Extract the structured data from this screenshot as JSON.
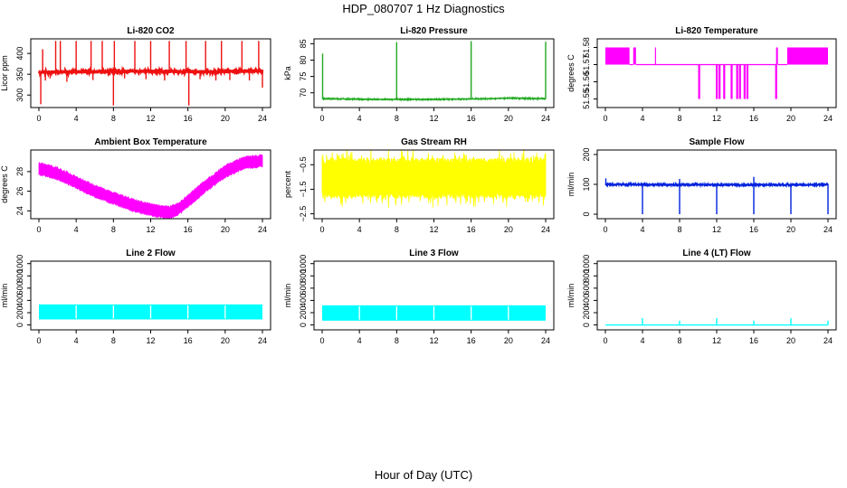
{
  "figure": {
    "title": "HDP_080707  1 Hz Diagnostics",
    "xlabel": "Hour of Day (UTC)"
  },
  "colors": {
    "red": "#ee1111",
    "green": "#22aa22",
    "magenta": "#ff00ff",
    "yellow": "#ffff00",
    "blue": "#0022dd",
    "cyan": "#00ffff"
  },
  "chart_data": [
    {
      "type": "line",
      "title": "Li-820 CO2",
      "ylabel": "Licor ppm",
      "color": "red",
      "xlim": [
        0,
        24
      ],
      "ylim": [
        270,
        435
      ],
      "xticks": [
        0,
        4,
        8,
        12,
        16,
        20,
        24
      ],
      "yticks": [
        300,
        350,
        400
      ],
      "baseline": [
        [
          0,
          355
        ],
        [
          6,
          356
        ],
        [
          12,
          357
        ],
        [
          18,
          356
        ],
        [
          24,
          358
        ]
      ],
      "noise": 4,
      "thickness": 2.5,
      "spikes_up": [
        [
          0.4,
          410
        ],
        [
          1.8,
          430
        ],
        [
          2.3,
          430
        ],
        [
          4.0,
          430
        ],
        [
          5.6,
          430
        ],
        [
          6.8,
          430
        ],
        [
          8.1,
          430
        ],
        [
          10.3,
          430
        ],
        [
          12.0,
          430
        ],
        [
          14.0,
          430
        ],
        [
          15.8,
          430
        ],
        [
          17.9,
          430
        ],
        [
          19.6,
          430
        ],
        [
          21.8,
          430
        ],
        [
          23.6,
          430
        ]
      ],
      "spikes_down": [
        [
          0.2,
          278
        ],
        [
          0.7,
          335
        ],
        [
          1.2,
          340
        ],
        [
          3.0,
          332
        ],
        [
          5.8,
          336
        ],
        [
          8.0,
          275
        ],
        [
          9.2,
          340
        ],
        [
          11.5,
          338
        ],
        [
          13.5,
          335
        ],
        [
          16.1,
          275
        ],
        [
          17.3,
          338
        ],
        [
          19.0,
          335
        ],
        [
          20.5,
          336
        ],
        [
          22.6,
          335
        ],
        [
          24.0,
          318
        ]
      ],
      "seed": 11
    },
    {
      "type": "line",
      "title": "Li-820 Pressure",
      "ylabel": "kPa",
      "color": "green",
      "xlim": [
        0,
        24
      ],
      "ylim": [
        65.5,
        86.5
      ],
      "xticks": [
        0,
        4,
        8,
        12,
        16,
        20,
        24
      ],
      "yticks": [
        70,
        75,
        80,
        85
      ],
      "baseline": [
        [
          0,
          68.2
        ],
        [
          6,
          68.0
        ],
        [
          12,
          68.0
        ],
        [
          18,
          68.2
        ],
        [
          20,
          68.4
        ],
        [
          24,
          68.2
        ]
      ],
      "noise": 0.12,
      "thickness": 1.2,
      "spikes_up": [
        [
          0.05,
          82
        ],
        [
          8.0,
          85.5
        ],
        [
          16.0,
          85.8
        ],
        [
          24.0,
          85.6
        ]
      ],
      "spikes_down": [],
      "seed": 23
    },
    {
      "type": "line",
      "title": "Li-820 Temperature",
      "ylabel": "degrees C",
      "color": "magenta",
      "xlim": [
        0,
        24
      ],
      "ylim": [
        51.545,
        51.585
      ],
      "xticks": [
        0,
        4,
        8,
        12,
        16,
        20,
        24
      ],
      "yticks": [
        51.55,
        51.56,
        51.57,
        51.58
      ],
      "levels": [
        51.55,
        51.57,
        51.58
      ],
      "segments": [
        {
          "from": 0.0,
          "to": 2.6,
          "mode": "fill_hi"
        },
        {
          "from": 2.6,
          "to": 3.0,
          "mode": "mid"
        },
        {
          "from": 3.0,
          "to": 3.3,
          "mode": "fill_hi"
        },
        {
          "from": 3.3,
          "to": 18.4,
          "mode": "mid"
        },
        {
          "from": 18.4,
          "to": 18.6,
          "mode": "fill_hi"
        },
        {
          "from": 18.6,
          "to": 19.6,
          "mode": "mid"
        },
        {
          "from": 19.6,
          "to": 24.0,
          "mode": "fill_hi"
        }
      ],
      "spikes_up": [
        5.4,
        19.8
      ],
      "spikes_down": [
        10.1,
        12.0,
        12.3,
        12.8,
        13.6,
        14.2,
        14.5,
        15.0,
        15.3,
        18.4
      ],
      "seed": 37
    },
    {
      "type": "band",
      "title": "Ambient Box Temperature",
      "ylabel": "degrees C",
      "color": "magenta",
      "xlim": [
        0,
        24
      ],
      "ylim": [
        23.2,
        30.2
      ],
      "xticks": [
        0,
        4,
        8,
        12,
        16,
        20,
        24
      ],
      "yticks": [
        24,
        26,
        28
      ],
      "center": [
        [
          0,
          28.3
        ],
        [
          2,
          27.8
        ],
        [
          4,
          26.9
        ],
        [
          6,
          26.0
        ],
        [
          8,
          25.3
        ],
        [
          10,
          24.6
        ],
        [
          12,
          24.1
        ],
        [
          14,
          23.8
        ],
        [
          15,
          24.2
        ],
        [
          16,
          25.0
        ],
        [
          18,
          26.6
        ],
        [
          20,
          28.0
        ],
        [
          22,
          28.9
        ],
        [
          24,
          29.1
        ]
      ],
      "halfwidth": 0.6,
      "seed": 41
    },
    {
      "type": "band",
      "title": "Gas Stream RH",
      "ylabel": "percent",
      "color": "yellow",
      "xlim": [
        0,
        24
      ],
      "ylim": [
        -2.7,
        0.1
      ],
      "xticks": [
        0,
        4,
        8,
        12,
        16,
        20,
        24
      ],
      "yticks": [
        -2.5,
        -1.5,
        -0.5
      ],
      "center": [
        [
          0,
          -1.05
        ],
        [
          24,
          -1.05
        ]
      ],
      "halfwidth": 0.75,
      "spiky": true,
      "seed": 53
    },
    {
      "type": "line",
      "title": "Sample Flow",
      "ylabel": "ml/min",
      "color": "blue",
      "xlim": [
        0,
        24
      ],
      "ylim": [
        -15,
        215
      ],
      "xticks": [
        0,
        4,
        8,
        12,
        16,
        20,
        24
      ],
      "yticks": [
        0,
        100,
        200
      ],
      "baseline": [
        [
          0,
          100
        ],
        [
          12,
          98
        ],
        [
          24,
          99
        ]
      ],
      "noise": 2,
      "thickness": 1.6,
      "spikes_up": [
        [
          0.05,
          120
        ],
        [
          8.0,
          118
        ],
        [
          16.0,
          125
        ]
      ],
      "spikes_down": [
        [
          4.0,
          0
        ],
        [
          8.0,
          0
        ],
        [
          12.0,
          0
        ],
        [
          16.0,
          0
        ],
        [
          20.0,
          0
        ],
        [
          24.0,
          0
        ]
      ],
      "seed": 67
    },
    {
      "type": "band",
      "title": "Line 2 Flow",
      "ylabel": "ml/min",
      "color": "cyan",
      "xlim": [
        0,
        24
      ],
      "ylim": [
        -80,
        1040
      ],
      "xticks": [
        0,
        4,
        8,
        12,
        16,
        20,
        24
      ],
      "yticks": [
        0,
        200,
        400,
        600,
        800,
        1000
      ],
      "flat_band": [
        90,
        335
      ],
      "gaps": [
        4,
        8,
        12,
        16,
        20,
        24
      ],
      "seed": 71
    },
    {
      "type": "band",
      "title": "Line 3 Flow",
      "ylabel": "ml/min",
      "color": "cyan",
      "xlim": [
        0,
        24
      ],
      "ylim": [
        -80,
        1040
      ],
      "xticks": [
        0,
        4,
        8,
        12,
        16,
        20,
        24
      ],
      "yticks": [
        0,
        200,
        400,
        600,
        800,
        1000
      ],
      "flat_band": [
        70,
        320
      ],
      "gaps": [
        4,
        8,
        12,
        16,
        20,
        24
      ],
      "seed": 79
    },
    {
      "type": "line",
      "title": "Line 4 (LT) Flow",
      "ylabel": "ml/min",
      "color": "cyan",
      "xlim": [
        0,
        24
      ],
      "ylim": [
        -80,
        1040
      ],
      "xticks": [
        0,
        4,
        8,
        12,
        16,
        20,
        24
      ],
      "yticks": [
        0,
        200,
        400,
        600,
        800,
        1000
      ],
      "baseline": [
        [
          0,
          0
        ],
        [
          24,
          0
        ]
      ],
      "noise": 0,
      "thickness": 1.2,
      "spikes_up": [
        [
          4.0,
          110
        ],
        [
          8.0,
          70
        ],
        [
          12.0,
          110
        ],
        [
          16.0,
          70
        ],
        [
          20.0,
          110
        ],
        [
          24.0,
          70
        ]
      ],
      "spikes_down": [],
      "seed": 83
    }
  ]
}
